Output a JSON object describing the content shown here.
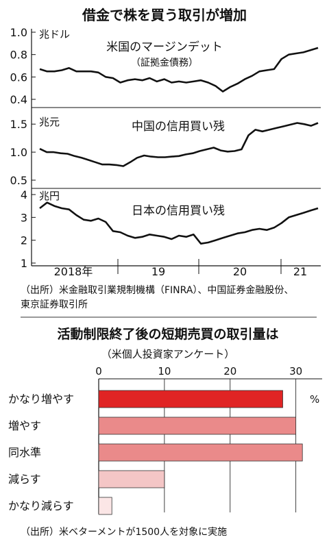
{
  "chart_data": [
    {
      "type": "line",
      "title": "借金で株を買う取引が増加",
      "x_ticks": [
        "2018年",
        "19",
        "20",
        "21"
      ],
      "panels": [
        {
          "name": "米国のマージンデット",
          "subname": "（証拠金債務）",
          "unit": "兆ドル",
          "ylim": [
            0.4,
            1.0
          ],
          "y_ticks": [
            "1.0",
            "0.8",
            "0.6",
            "0.4"
          ],
          "y_tick_values": [
            1.0,
            0.8,
            0.6,
            0.4
          ],
          "values": [
            0.67,
            0.65,
            0.65,
            0.66,
            0.68,
            0.65,
            0.65,
            0.65,
            0.64,
            0.6,
            0.59,
            0.55,
            0.57,
            0.58,
            0.57,
            0.59,
            0.56,
            0.58,
            0.55,
            0.56,
            0.55,
            0.56,
            0.57,
            0.55,
            0.52,
            0.47,
            0.51,
            0.54,
            0.58,
            0.61,
            0.65,
            0.66,
            0.67,
            0.76,
            0.8,
            0.81,
            0.82,
            0.84,
            0.86
          ]
        },
        {
          "name": "中国の信用買い残",
          "unit": "兆元",
          "ylim": [
            0.5,
            1.6
          ],
          "y_ticks": [
            "1.5",
            "1.0",
            "0.5"
          ],
          "y_tick_values": [
            1.5,
            1.0,
            0.5
          ],
          "values": [
            1.06,
            1.0,
            1.0,
            0.98,
            0.97,
            0.93,
            0.9,
            0.86,
            0.82,
            0.78,
            0.78,
            0.77,
            0.75,
            0.82,
            0.9,
            0.94,
            0.92,
            0.91,
            0.91,
            0.92,
            0.93,
            0.96,
            0.98,
            1.02,
            1.05,
            1.08,
            1.03,
            1.01,
            1.02,
            1.05,
            1.3,
            1.4,
            1.37,
            1.4,
            1.43,
            1.46,
            1.49,
            1.52,
            1.5,
            1.47,
            1.52
          ]
        },
        {
          "name": "日本の信用買い残",
          "unit": "兆円",
          "ylim": [
            1,
            4
          ],
          "y_ticks": [
            "4",
            "3",
            "2",
            "1"
          ],
          "y_tick_values": [
            4,
            3,
            2,
            1
          ],
          "values": [
            3.4,
            3.65,
            3.5,
            3.4,
            3.35,
            3.1,
            2.9,
            2.85,
            2.95,
            2.8,
            2.4,
            2.35,
            2.2,
            2.1,
            2.15,
            2.25,
            2.2,
            2.15,
            2.05,
            2.2,
            2.15,
            2.25,
            1.85,
            1.9,
            2.0,
            2.1,
            2.2,
            2.3,
            2.35,
            2.45,
            2.5,
            2.45,
            2.55,
            2.75,
            3.0,
            3.1,
            3.2,
            3.3,
            3.4
          ]
        }
      ],
      "source": "（出所）米金融取引業規制機構（FINRA）、中国証券金融股份、東京証券取引所"
    },
    {
      "type": "bar",
      "title": "活動制限終了後の短期売買の取引量は",
      "subtitle": "（米個人投資家アンケート）",
      "categories": [
        "かなり増やす",
        "増やす",
        "同水準",
        "減らす",
        "かなり減らす"
      ],
      "values": [
        28,
        30,
        31,
        10,
        2
      ],
      "xlim": [
        0,
        34
      ],
      "x_ticks": [
        0,
        10,
        20,
        30
      ],
      "unit": "%",
      "bar_colors": [
        "#e02424",
        "#ea8a8a",
        "#ea8a8a",
        "#f4c6c6",
        "#fbe6e6"
      ],
      "source": "（出所）米ベターメントが1500人を対象に実施"
    }
  ]
}
